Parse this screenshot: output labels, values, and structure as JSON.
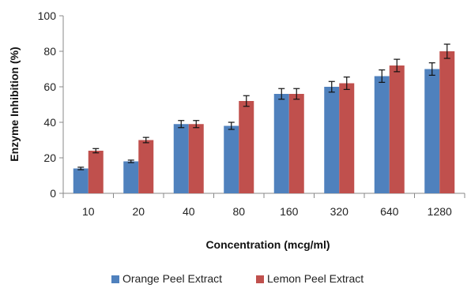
{
  "chart_data": {
    "type": "bar",
    "title": "",
    "xlabel": "Concentration (mcg/ml)",
    "ylabel": "Enzyme Inhibition (%)",
    "ylim": [
      0,
      100
    ],
    "yticks": [
      "0",
      "20",
      "40",
      "60",
      "80",
      "100"
    ],
    "grid": false,
    "legend_position": "bottom",
    "categories": [
      "10",
      "20",
      "40",
      "80",
      "160",
      "320",
      "640",
      "1280"
    ],
    "series": [
      {
        "name": "Orange Peel Extract",
        "color": "#4F81BD",
        "values": [
          14,
          18,
          39,
          38,
          56,
          60,
          66,
          70
        ],
        "errors": [
          0.7,
          0.7,
          2,
          2,
          3,
          3,
          3.5,
          3.5
        ]
      },
      {
        "name": "Lemon Peel Extract",
        "color": "#C0504D",
        "values": [
          24,
          30,
          39,
          52,
          56,
          62,
          72,
          80
        ],
        "errors": [
          1.2,
          1.5,
          2,
          3,
          3,
          3.5,
          3.5,
          4
        ]
      }
    ]
  }
}
